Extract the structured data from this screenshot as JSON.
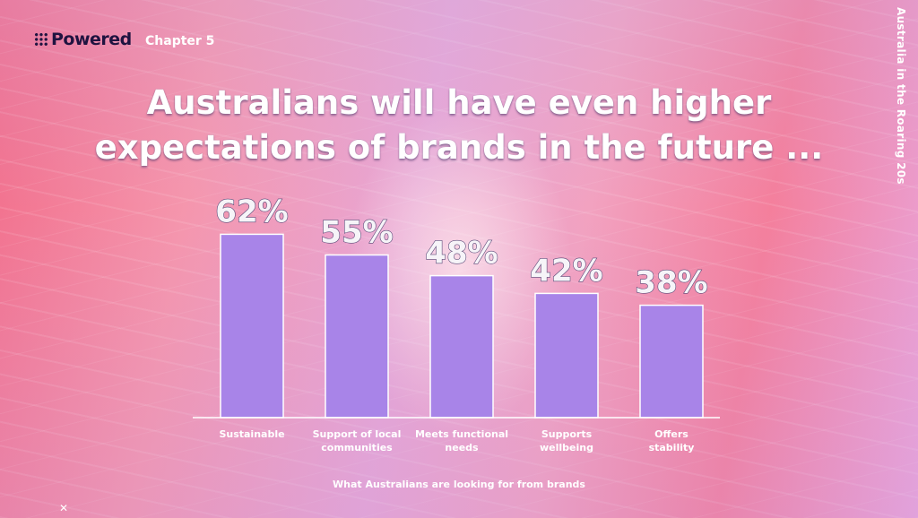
{
  "header": {
    "logo_text": "Powered",
    "chapter": "Chapter 5",
    "side_title": "Australia in the Roaring 20s"
  },
  "title_lines": [
    "Australians will have even higher",
    "expectations of brands in the future ..."
  ],
  "caption": "What Australians are looking for from brands",
  "colors": {
    "bar": "#a884e8",
    "bar_stroke": "#ffffff",
    "axis": "#ffffff"
  },
  "chart_data": {
    "type": "bar",
    "categories": [
      [
        "Sustainable"
      ],
      [
        "Support of local",
        "communities"
      ],
      [
        "Meets functional",
        "needs"
      ],
      [
        "Supports",
        "wellbeing"
      ],
      [
        "Offers",
        "stability"
      ]
    ],
    "values": [
      62,
      55,
      48,
      42,
      38
    ],
    "value_labels": [
      "62%",
      "55%",
      "48%",
      "42%",
      "38%"
    ],
    "unit": "%",
    "ylim": [
      0,
      100
    ],
    "grid": false,
    "legend": "none",
    "xlabel": "What Australians are looking for from brands",
    "ylabel": ""
  },
  "footer": {
    "close_symbol": "✕"
  }
}
